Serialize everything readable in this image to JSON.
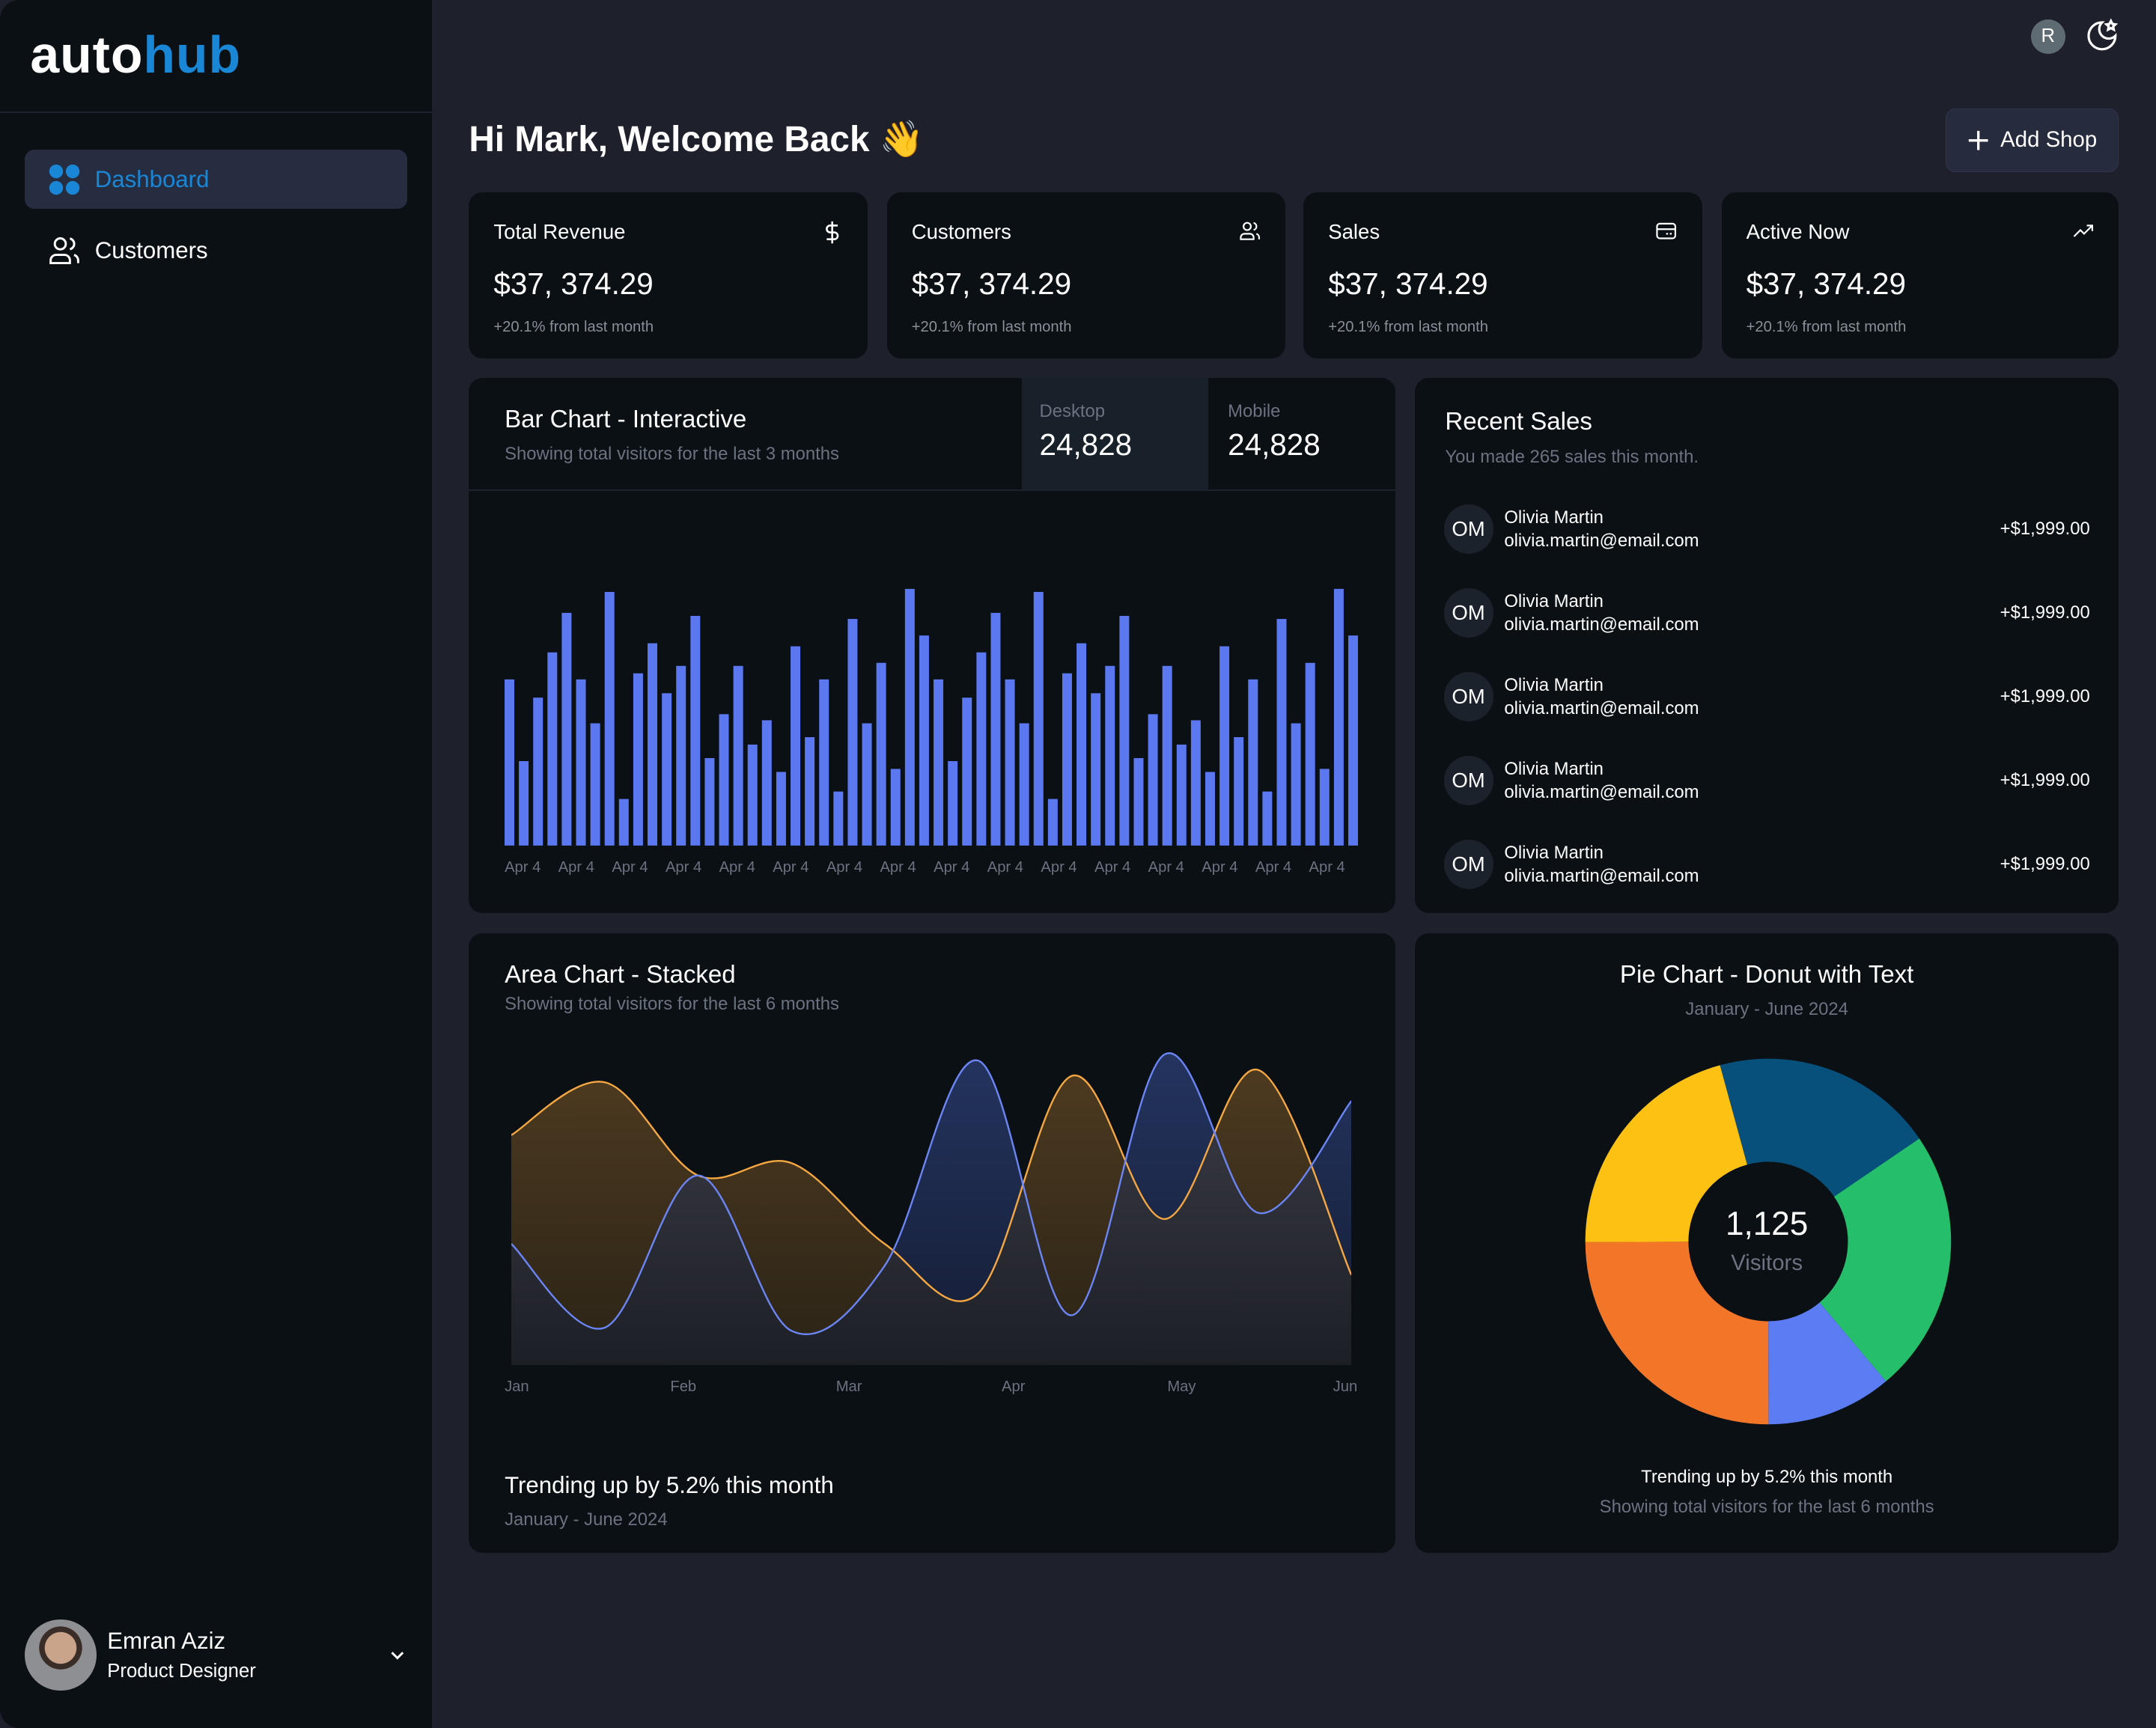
{
  "brand": {
    "part1": "auto",
    "part2": "hub"
  },
  "sidebar": {
    "items": [
      {
        "label": "Dashboard",
        "icon": "dashboard-icon",
        "active": true
      },
      {
        "label": "Customers",
        "icon": "users-icon",
        "active": false
      }
    ],
    "user": {
      "name": "Emran Aziz",
      "role": "Product Designer"
    }
  },
  "header": {
    "avatar_initial": "R",
    "theme_icon": "moon-star-icon",
    "greeting": "Hi Mark, Welcome Back 👋",
    "add_shop": "Add Shop"
  },
  "stats": [
    {
      "label": "Total Revenue",
      "value": "$37, 374.29",
      "change": "+20.1% from last month",
      "icon": "dollar-icon"
    },
    {
      "label": "Customers",
      "value": "$37, 374.29",
      "change": "+20.1% from last month",
      "icon": "users-icon"
    },
    {
      "label": "Sales",
      "value": "$37, 374.29",
      "change": "+20.1% from last month",
      "icon": "credit-card-icon"
    },
    {
      "label": "Active Now",
      "value": "$37, 374.29",
      "change": "+20.1% from last month",
      "icon": "trending-up-icon"
    }
  ],
  "bar_card": {
    "title": "Bar Chart - Interactive",
    "subtitle": "Showing total visitors for the last 3 months",
    "desktop_label": "Desktop",
    "desktop_value": "24,828",
    "mobile_label": "Mobile",
    "mobile_value": "24,828"
  },
  "recent_sales": {
    "title": "Recent Sales",
    "subtitle": "You made 265 sales this month.",
    "items": [
      {
        "initials": "OM",
        "name": "Olivia Martin",
        "email": "olivia.martin@email.com",
        "amount": "+$1,999.00"
      },
      {
        "initials": "OM",
        "name": "Olivia Martin",
        "email": "olivia.martin@email.com",
        "amount": "+$1,999.00"
      },
      {
        "initials": "OM",
        "name": "Olivia Martin",
        "email": "olivia.martin@email.com",
        "amount": "+$1,999.00"
      },
      {
        "initials": "OM",
        "name": "Olivia Martin",
        "email": "olivia.martin@email.com",
        "amount": "+$1,999.00"
      },
      {
        "initials": "OM",
        "name": "Olivia Martin",
        "email": "olivia.martin@email.com",
        "amount": "+$1,999.00"
      }
    ]
  },
  "area_card": {
    "title": "Area Chart - Stacked",
    "subtitle": "Showing total visitors for the last 6 months",
    "footer": "Trending up by 5.2% this month",
    "footer_sub": "January - June 2024"
  },
  "pie_card": {
    "title": "Pie Chart - Donut with Text",
    "subtitle": "January - June 2024",
    "center_value": "1,125",
    "center_label": "Visitors",
    "footer": "Trending up by 5.2% this month",
    "footer_sub": "Showing total visitors for the last 6 months"
  },
  "chart_data": [
    {
      "type": "bar",
      "title": "Bar Chart - Interactive",
      "color": "#5b78f0",
      "ylim": [
        0,
        1050
      ],
      "tick_labels": [
        "Apr 4",
        "Apr 4",
        "Apr 4",
        "Apr 4",
        "Apr 4",
        "Apr 4",
        "Apr 4",
        "Apr 4",
        "Apr 4",
        "Apr 4",
        "Apr 4",
        "Apr 4",
        "Apr 4",
        "Apr 4",
        "Apr 4",
        "Apr 4"
      ],
      "values": [
        492,
        250,
        438,
        572,
        689,
        492,
        362,
        751,
        138,
        510,
        599,
        451,
        532,
        680,
        259,
        389,
        532,
        299,
        371,
        218,
        590,
        321,
        492,
        160,
        671,
        362,
        541,
        227,
        760,
        622,
        492,
        250,
        438,
        572,
        689,
        492,
        362,
        751,
        138,
        510,
        599,
        451,
        532,
        680,
        259,
        389,
        532,
        299,
        371,
        218,
        590,
        321,
        492,
        160,
        671,
        362,
        541,
        227,
        760,
        622
      ]
    },
    {
      "type": "area",
      "title": "Area Chart - Stacked",
      "ylim": [
        0,
        100
      ],
      "x_labels": [
        "Jan",
        "Feb",
        "Mar",
        "Apr",
        "May",
        "Jun"
      ],
      "series": [
        {
          "name": "orange",
          "color": "#f5a742",
          "values": [
            74,
            91,
            61,
            65,
            39,
            23,
            93,
            47,
            95,
            29
          ]
        },
        {
          "name": "blue",
          "color": "#6b85f5",
          "values": [
            39,
            12,
            61,
            11,
            32,
            98,
            16,
            100,
            49,
            85
          ]
        }
      ]
    },
    {
      "type": "pie",
      "title": "Pie Chart - Donut with Text",
      "total": 1125,
      "slices": [
        {
          "name": "navy",
          "value": 222,
          "color": "#08507c"
        },
        {
          "name": "green",
          "value": 263,
          "color": "#25bf6b"
        },
        {
          "name": "blue",
          "value": 125,
          "color": "#5b7cf2"
        },
        {
          "name": "orange",
          "value": 281,
          "color": "#f37628"
        },
        {
          "name": "yellow",
          "value": 234,
          "color": "#fdc113"
        }
      ]
    }
  ]
}
